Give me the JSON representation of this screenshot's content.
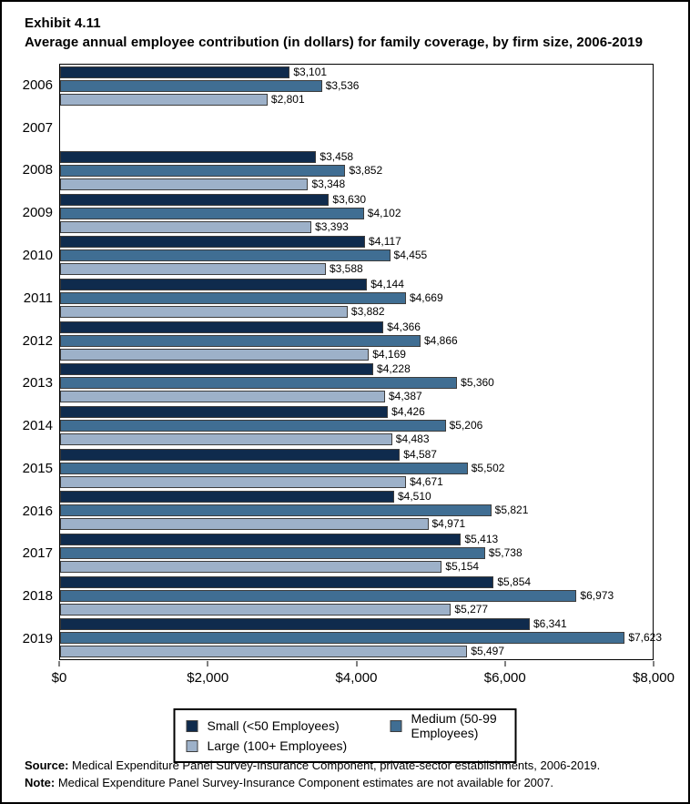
{
  "header": {
    "exhibit": "Exhibit 4.11",
    "title": "Average annual employee contribution (in dollars) for family coverage, by firm size, 2006-2019"
  },
  "chart_data": {
    "type": "bar",
    "orientation": "horizontal",
    "title": "Average annual employee contribution (in dollars) for family coverage, by firm size, 2006-2019",
    "categories": [
      "2006",
      "2007",
      "2008",
      "2009",
      "2010",
      "2011",
      "2012",
      "2013",
      "2014",
      "2015",
      "2016",
      "2017",
      "2018",
      "2019"
    ],
    "series": [
      {
        "name": "Small (<50 Employees)",
        "color": "#0f2b4d",
        "values": [
          3101,
          null,
          3458,
          3630,
          4117,
          4144,
          4366,
          4228,
          4426,
          4587,
          4510,
          5413,
          5854,
          6341
        ]
      },
      {
        "name": "Medium (50-99 Employees)",
        "color": "#406e93",
        "values": [
          3536,
          null,
          3852,
          4102,
          4455,
          4669,
          4866,
          5360,
          5206,
          5502,
          5821,
          5738,
          6973,
          7623
        ]
      },
      {
        "name": "Large (100+ Employees)",
        "color": "#9db1c9",
        "values": [
          2801,
          null,
          3348,
          3393,
          3588,
          3882,
          4169,
          4387,
          4483,
          4671,
          4971,
          5154,
          5277,
          5497
        ]
      }
    ],
    "xlim": [
      0,
      8000
    ],
    "x_ticks": [
      {
        "value": 0,
        "label": "$0"
      },
      {
        "value": 2000,
        "label": "$2,000"
      },
      {
        "value": 4000,
        "label": "$4,000"
      },
      {
        "value": 6000,
        "label": "$6,000"
      },
      {
        "value": 8000,
        "label": "$8,000"
      }
    ],
    "value_prefix": "$",
    "grid": false,
    "legend_position": "bottom",
    "missing_data_categories": [
      "2007"
    ]
  },
  "legend": {
    "items": [
      {
        "label": "Small (<50 Employees)",
        "color": "#0f2b4d"
      },
      {
        "label": "Large (100+ Employees)",
        "color": "#9db1c9"
      },
      {
        "label": "Medium (50-99 Employees)",
        "color": "#406e93"
      }
    ]
  },
  "footer": {
    "source_label": "Source:",
    "source_text": " Medical Expenditure Panel Survey-Insurance Component, private-sector establishments, 2006-2019.",
    "note_label": "Note:",
    "note_text": " Medical Expenditure Panel Survey-Insurance Component estimates are not available for 2007."
  }
}
